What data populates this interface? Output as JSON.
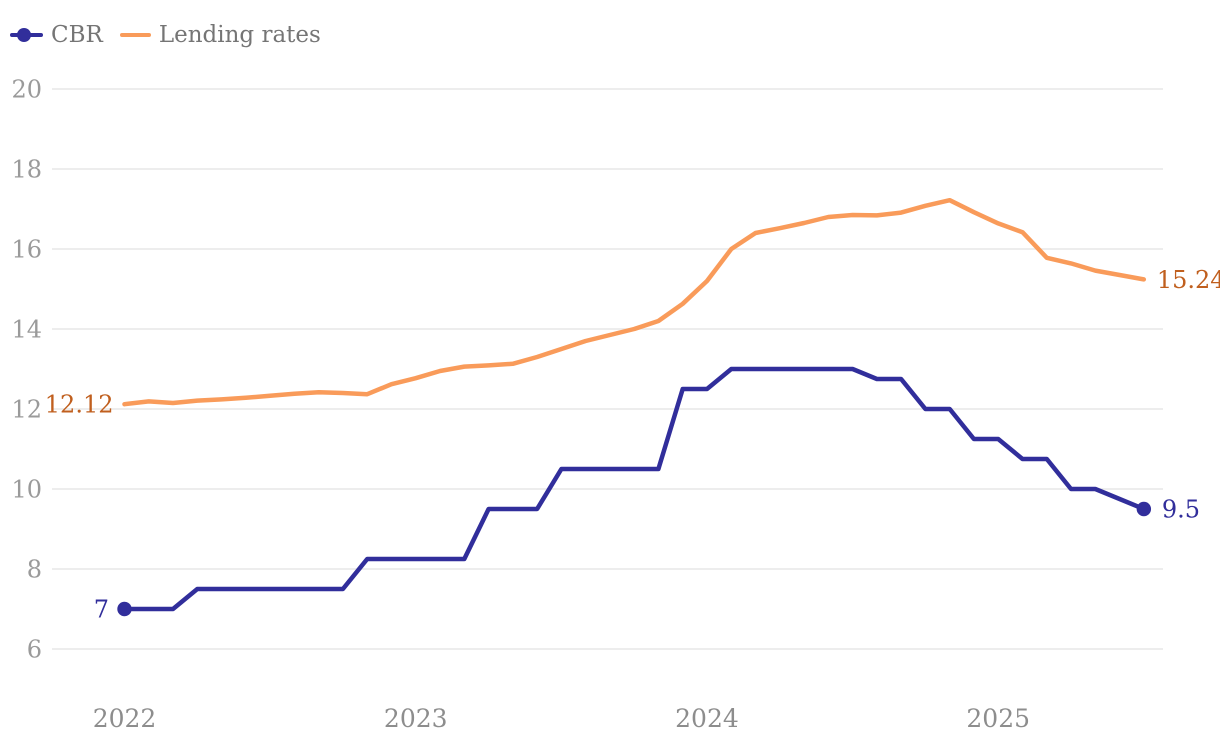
{
  "colors": {
    "cbr": "#312E9B",
    "lending": "#F99B5A",
    "cbr_label": "#312E9B",
    "lending_label": "#C05F1E",
    "y_axis_text": "#9A9A9A",
    "x_axis_text": "#8D8D8D",
    "legend_text": "#757575",
    "gridline": "#E7E7E7",
    "background": "#FFFFFF"
  },
  "legend": {
    "position": "top-left",
    "items": [
      {
        "label": "CBR",
        "swatch": "line-with-dot"
      },
      {
        "label": "Lending rates",
        "swatch": "line"
      }
    ]
  },
  "chart_data": {
    "type": "line",
    "title": "",
    "xlabel": "",
    "ylabel": "",
    "grid": "horizontal",
    "legend_position": "top-left",
    "x": [
      "Jan 2022",
      "Feb 2022",
      "Mar 2022",
      "Apr 2022",
      "May 2022",
      "Jun 2022",
      "Jul 2022",
      "Aug 2022",
      "Sep 2022",
      "Oct 2022",
      "Nov 2022",
      "Dec 2022",
      "Jan 2023",
      "Feb 2023",
      "Mar 2023",
      "Apr 2023",
      "May 2023",
      "Jun 2023",
      "Jul 2023",
      "Aug 2023",
      "Sep 2023",
      "Oct 2023",
      "Nov 2023",
      "Dec 2023",
      "Jan 2024",
      "Feb 2024",
      "Mar 2024",
      "Apr 2024",
      "May 2024",
      "Jun 2024",
      "Jul 2024",
      "Aug 2024",
      "Sep 2024",
      "Oct 2024",
      "Nov 2024",
      "Dec 2024",
      "Jan 2025",
      "Feb 2025",
      "Mar 2025",
      "Apr 2025",
      "May 2025",
      "Jun 2025",
      "Jul 2025"
    ],
    "series": [
      {
        "name": "Lending rates",
        "color_key": "lending",
        "label_color_key": "lending_label",
        "start_marker": false,
        "end_marker": false,
        "first_point_label": "12.12",
        "last_point_label": "15.24",
        "values": [
          12.12,
          12.19,
          12.15,
          12.21,
          12.24,
          12.28,
          12.33,
          12.38,
          12.42,
          12.4,
          12.37,
          12.62,
          12.77,
          12.95,
          13.06,
          13.09,
          13.13,
          13.3,
          13.5,
          13.7,
          13.85,
          14.0,
          14.2,
          14.63,
          15.2,
          16.0,
          16.4,
          16.52,
          16.65,
          16.8,
          16.85,
          16.84,
          16.91,
          17.08,
          17.22,
          16.92,
          16.64,
          16.42,
          15.78,
          15.64,
          15.46,
          15.35,
          15.24
        ]
      },
      {
        "name": "CBR",
        "color_key": "cbr",
        "label_color_key": "cbr_label",
        "start_marker": true,
        "end_marker": true,
        "first_point_label": "7",
        "last_point_label": "9.5",
        "values": [
          7,
          7,
          7,
          7.5,
          7.5,
          7.5,
          7.5,
          7.5,
          7.5,
          7.5,
          8.25,
          8.25,
          8.25,
          8.25,
          8.25,
          9.5,
          9.5,
          9.5,
          10.5,
          10.5,
          10.5,
          10.5,
          10.5,
          12.5,
          12.5,
          13,
          13,
          13,
          13,
          13,
          13,
          12.75,
          12.75,
          12,
          12,
          11.25,
          11.25,
          10.75,
          10.75,
          10,
          10,
          9.75,
          9.5
        ]
      }
    ],
    "y_axis": {
      "ticks": [
        20,
        18,
        16,
        14,
        12,
        10,
        8,
        6
      ],
      "range": [
        6,
        20
      ]
    },
    "x_axis": {
      "ticks": [
        {
          "label": "2022",
          "index": 0
        },
        {
          "label": "2023",
          "index": 12
        },
        {
          "label": "2024",
          "index": 24
        },
        {
          "label": "2025",
          "index": 36
        }
      ]
    }
  }
}
